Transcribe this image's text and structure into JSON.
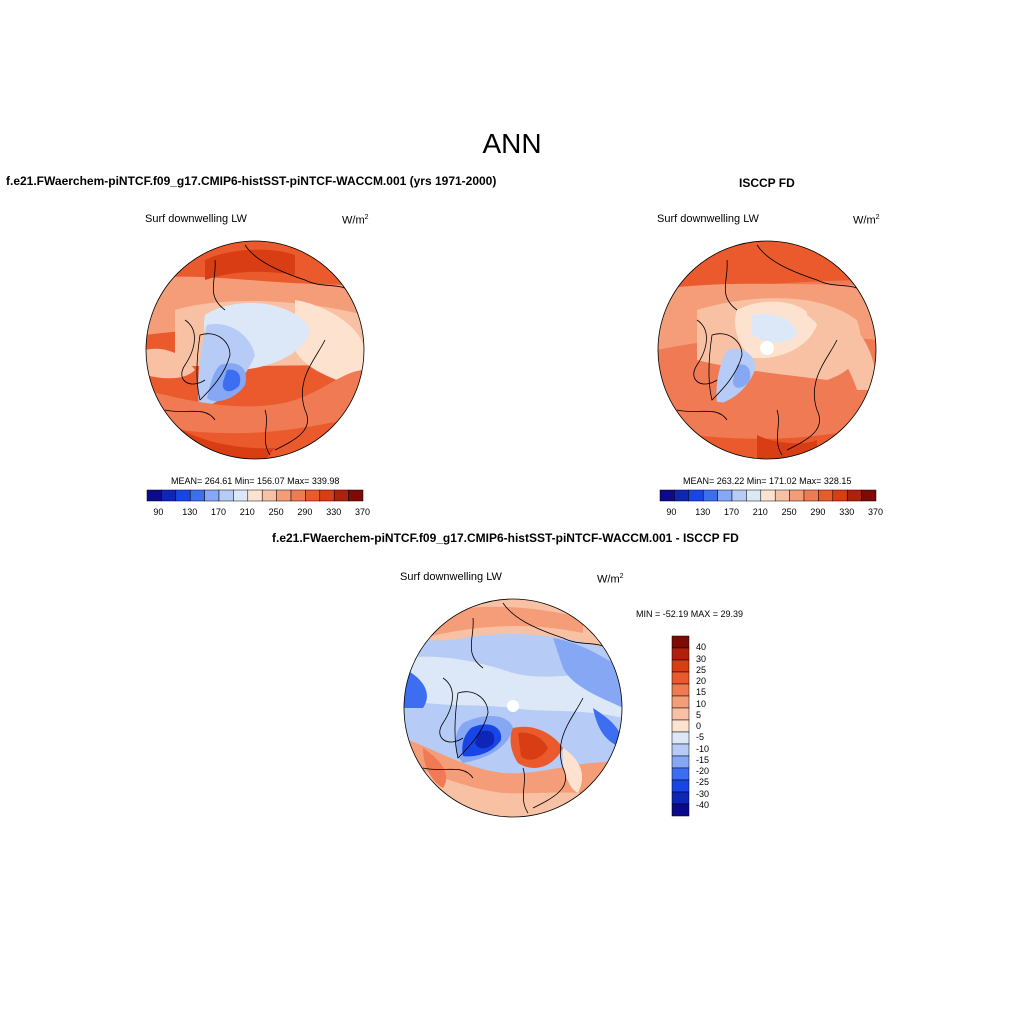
{
  "figure": {
    "title": "ANN"
  },
  "panels": {
    "model": {
      "title": "f.e21.FWaerchem-piNTCF.f09_g17.CMIP6-histSST-piNTCF-WACCM.001 (yrs 1971-2000)",
      "variable": "Surf downwelling LW",
      "units": "W/m",
      "units_sup": "2",
      "stats": {
        "text": "MEAN= 264.61  Min= 156.07  Max= 339.98",
        "mean": 264.61,
        "min": 156.07,
        "max": 339.98
      },
      "colorbar_ticks": [
        "90",
        "130",
        "170",
        "210",
        "250",
        "290",
        "330",
        "370"
      ]
    },
    "obs": {
      "title": "ISCCP FD",
      "variable": "Surf downwelling LW",
      "units": "W/m",
      "units_sup": "2",
      "stats": {
        "text": "MEAN= 263.22  Min= 171.02  Max= 328.15",
        "mean": 263.22,
        "min": 171.02,
        "max": 328.15
      },
      "colorbar_ticks": [
        "90",
        "130",
        "170",
        "210",
        "250",
        "290",
        "330",
        "370"
      ]
    },
    "diff": {
      "title": "f.e21.FWaerchem-piNTCF.f09_g17.CMIP6-histSST-piNTCF-WACCM.001 - ISCCP FD",
      "variable": "Surf downwelling LW",
      "units": "W/m",
      "units_sup": "2",
      "stats": {
        "text": "MIN = -52.19 MAX =  29.39",
        "min": -52.19,
        "max": 29.39
      },
      "colorbar_ticks": [
        "40",
        "30",
        "25",
        "20",
        "15",
        "10",
        "5",
        "0",
        "-5",
        "-10",
        "-15",
        "-20",
        "-25",
        "-30",
        "-40"
      ]
    }
  },
  "colors": {
    "abs_palette": [
      "#0b0b8a",
      "#0e25b8",
      "#1845e6",
      "#3d6ef2",
      "#86a7f3",
      "#b6ccf6",
      "#dce8f8",
      "#fde3cf",
      "#f8c1a4",
      "#f49d78",
      "#ef7a53",
      "#ea5a2d",
      "#d93d14",
      "#b0200d",
      "#7e0a05"
    ],
    "diff_palette": [
      "#7e0a05",
      "#b0200d",
      "#d93d14",
      "#ea5a2d",
      "#ef7a53",
      "#f49d78",
      "#f8c1a4",
      "#fde3cf",
      "#dce8f8",
      "#b6ccf6",
      "#86a7f3",
      "#3d6ef2",
      "#1845e6",
      "#0e25b8",
      "#0b0b8a"
    ]
  }
}
